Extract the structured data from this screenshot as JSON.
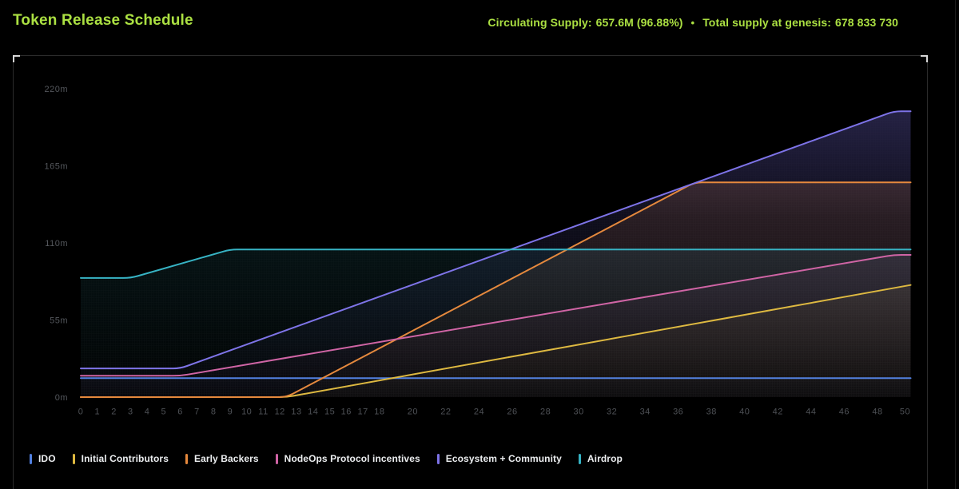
{
  "header": {
    "title": "Token Release Schedule",
    "stats": [
      {
        "label": "Circulating Supply:",
        "value": "657.6M (96.88%)"
      },
      {
        "label": "Total supply at genesis:",
        "value": "678 833 730"
      }
    ],
    "separator": "•",
    "accent_color": "#abe042"
  },
  "chart_data": {
    "type": "area",
    "title": "Token Release Schedule",
    "xlabel": "",
    "ylabel": "",
    "xlim": [
      0,
      50
    ],
    "ylim": [
      0,
      232
    ],
    "grid": false,
    "legend_position": "bottom",
    "x_ticks": [
      0,
      1,
      2,
      3,
      4,
      5,
      6,
      7,
      8,
      9,
      10,
      11,
      12,
      13,
      14,
      15,
      16,
      17,
      18,
      20,
      22,
      24,
      26,
      28,
      30,
      32,
      34,
      36,
      38,
      40,
      42,
      44,
      46,
      48,
      50
    ],
    "y_ticks": [
      {
        "value": 0,
        "label": "0m"
      },
      {
        "value": 55,
        "label": "55m"
      },
      {
        "value": 110,
        "label": "110m"
      },
      {
        "value": 165,
        "label": "165m"
      },
      {
        "value": 220,
        "label": "220m"
      }
    ],
    "unit": "millions of tokens",
    "series": [
      {
        "name": "IDO",
        "color": "#5180e0",
        "points": [
          [
            0,
            13.6
          ],
          [
            50,
            13.6
          ]
        ]
      },
      {
        "name": "Initial Contributors",
        "color": "#ddb83f",
        "points": [
          [
            0,
            0
          ],
          [
            12.4,
            0
          ],
          [
            50,
            80
          ]
        ]
      },
      {
        "name": "Early Backers",
        "color": "#e5883c",
        "points": [
          [
            0,
            0
          ],
          [
            12.4,
            0
          ],
          [
            37,
            153.3
          ],
          [
            50,
            153.3
          ]
        ]
      },
      {
        "name": "NodeOps Protocol incentives",
        "color": "#cf63a4",
        "points": [
          [
            0,
            15.2
          ],
          [
            6,
            15.2
          ],
          [
            49,
            101.5
          ],
          [
            50,
            101.5
          ]
        ]
      },
      {
        "name": "Ecosystem + Community",
        "color": "#7d73e8",
        "points": [
          [
            0,
            20.5
          ],
          [
            6,
            20.5
          ],
          [
            49,
            204
          ],
          [
            50,
            204
          ]
        ]
      },
      {
        "name": "Airdrop",
        "color": "#36b3c4",
        "points": [
          [
            0,
            85
          ],
          [
            3,
            85
          ],
          [
            9,
            105.3
          ],
          [
            50,
            105.3
          ]
        ]
      }
    ]
  }
}
